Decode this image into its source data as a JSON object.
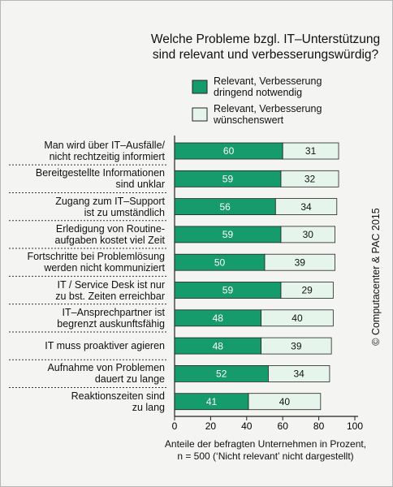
{
  "chart_data": {
    "type": "stacked-barh",
    "title": "Welche Probleme bzgl. IT–Unterstützung\nsind relevant und verbesserungswürdig?",
    "categories": [
      "Man wird über IT–Ausfälle/\nnicht rechtzeitig informiert",
      "Bereitgestellte Informationen\nsind unklar",
      "Zugang zum IT–Support\nist zu umständlich",
      "Erledigung von Routine-\naufgaben kostet viel Zeit",
      "Fortschritte bei Problemlösung\nwerden nicht kommuniziert",
      "IT / Service Desk ist nur\nzu bst. Zeiten erreichbar",
      "IT–Ansprechpartner ist\nbegrenzt auskunftsfähig",
      "IT muss proaktiver agieren",
      "Aufnahme von Problemen\ndauert zu lange",
      "Reaktionszeiten sind\nzu lang"
    ],
    "series": [
      {
        "name": "Relevant, Verbesserung\ndringend notwendig",
        "color": "#169c6c",
        "values": [
          60,
          59,
          56,
          59,
          50,
          59,
          48,
          48,
          52,
          41
        ]
      },
      {
        "name": "Relevant, Verbesserung\nwünschenswert",
        "color": "#e6f5ec",
        "values": [
          31,
          32,
          34,
          30,
          39,
          29,
          40,
          39,
          34,
          40
        ]
      }
    ],
    "xlim": [
      0,
      100
    ],
    "xticks": [
      0,
      20,
      40,
      60,
      80,
      100
    ],
    "x_label": "Anteile der befragten Unternehmen in Prozent,\nn = 500 (‘Nicht relevant’ nicht dargestellt)",
    "source": "© Computacenter & PAC 2015"
  }
}
